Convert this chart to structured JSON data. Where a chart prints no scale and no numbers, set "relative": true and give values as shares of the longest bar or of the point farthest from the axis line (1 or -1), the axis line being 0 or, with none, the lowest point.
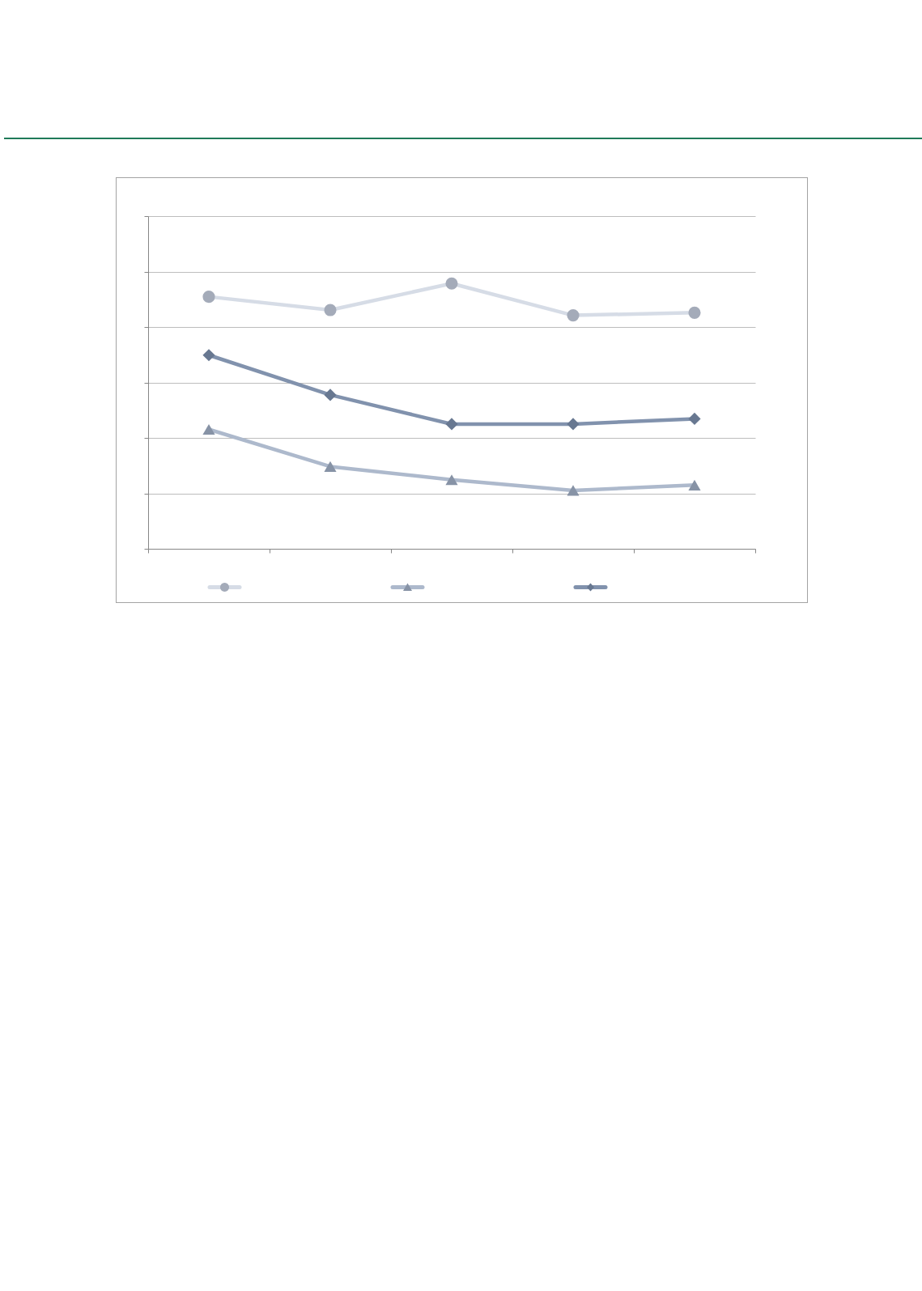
{
  "chart_data": {
    "type": "line",
    "relative": true,
    "categories": [
      null,
      null,
      null,
      null,
      null
    ],
    "series": [
      {
        "color": "#d6dce6",
        "marker": "circle",
        "values": [
          0.95,
          0.9,
          1,
          0.88,
          0.89
        ]
      },
      {
        "color": "#adb9cc",
        "marker": "triangle",
        "values": [
          0.45,
          0.31,
          0.26,
          0.22,
          0.24
        ]
      },
      {
        "color": "#8192ad",
        "marker": "diamond",
        "values": [
          0.73,
          0.58,
          0.47,
          0.47,
          0.49
        ]
      }
    ],
    "grid": "y"
  }
}
